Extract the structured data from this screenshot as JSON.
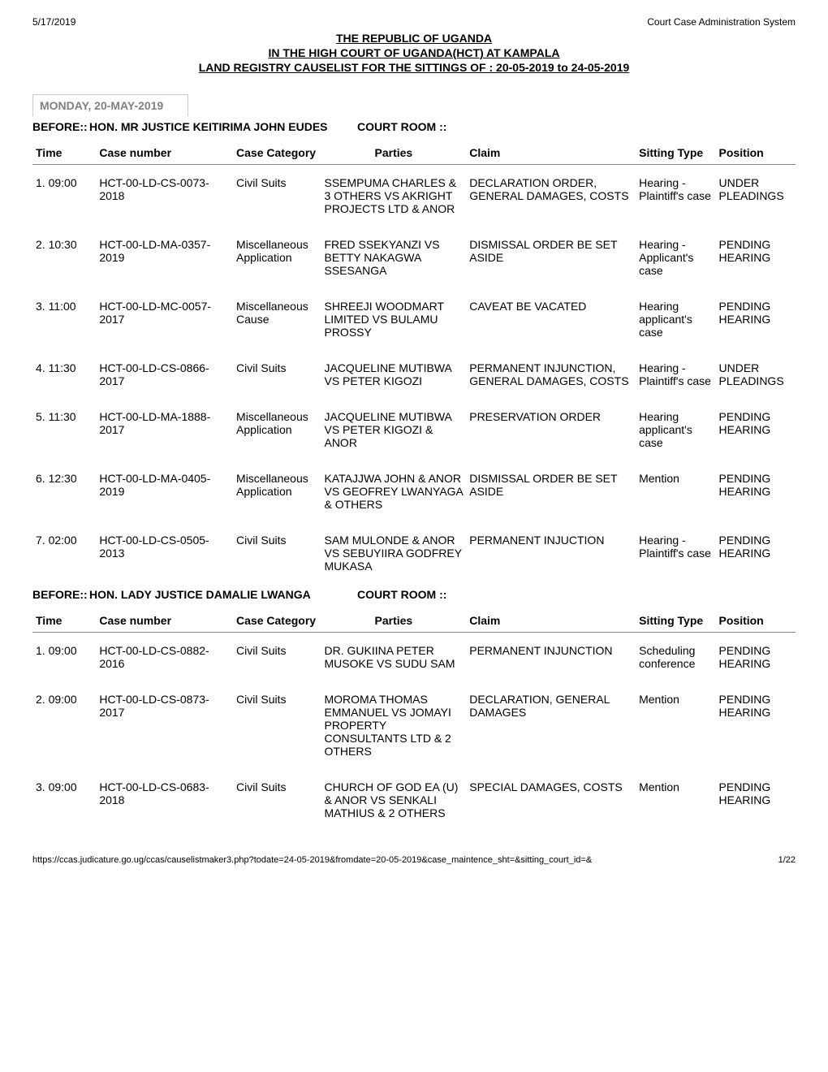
{
  "meta": {
    "date": "5/17/2019",
    "system": "Court Case Administration System",
    "url": "https://ccas.judicature.go.ug/ccas/causelistmaker3.php?todate=24-05-2019&fromdate=20-05-2019&case_maintence_sht=&sitting_court_id=&",
    "page": "1/22"
  },
  "title": {
    "line1": "THE REPUBLIC OF UGANDA",
    "line2": "IN THE HIGH COURT OF UGANDA(HCT) AT KAMPALA",
    "line3": "LAND REGISTRY CAUSELIST FOR THE SITTINGS OF : 20-05-2019 to 24-05-2019"
  },
  "date_header": "MONDAY, 20-MAY-2019",
  "labels": {
    "before": "BEFORE::",
    "courtroom": "COURT ROOM ::",
    "time": "Time",
    "case_number": "Case number",
    "case_category": "Case Category",
    "parties": "Parties",
    "claim": "Claim",
    "sitting_type": "Sitting Type",
    "position": "Position"
  },
  "sessions": [
    {
      "judge": "HON. MR JUSTICE KEITIRIMA JOHN EUDES",
      "rows": [
        {
          "idx": "1.",
          "time": "09:00",
          "case": "HCT-00-LD-CS-0073-2018",
          "category": "Civil Suits",
          "parties": "SSEMPUMA CHARLES & 3 OTHERS VS AKRIGHT PROJECTS LTD & ANOR",
          "claim": "DECLARATION ORDER, GENERAL DAMAGES, COSTS",
          "sitting": "Hearing - Plaintiff's case",
          "position": "UNDER PLEADINGS"
        },
        {
          "idx": "2.",
          "time": "10:30",
          "case": "HCT-00-LD-MA-0357-2019",
          "category": "Miscellaneous Application",
          "parties": "FRED SSEKYANZI VS BETTY NAKAGWA SSESANGA",
          "claim": "DISMISSAL ORDER BE SET ASIDE",
          "sitting": "Hearing - Applicant's case",
          "position": "PENDING HEARING"
        },
        {
          "idx": "3.",
          "time": "11:00",
          "case": "HCT-00-LD-MC-0057-2017",
          "category": "Miscellaneous Cause",
          "parties": "SHREEJI WOODMART LIMITED VS BULAMU PROSSY",
          "claim": "CAVEAT BE VACATED",
          "sitting": "Hearing applicant's case",
          "position": "PENDING HEARING"
        },
        {
          "idx": "4.",
          "time": "11:30",
          "case": "HCT-00-LD-CS-0866-2017",
          "category": "Civil Suits",
          "parties": "JACQUELINE MUTIBWA VS PETER KIGOZI",
          "claim": "PERMANENT INJUNCTION, GENERAL DAMAGES, COSTS",
          "sitting": "Hearing - Plaintiff's case",
          "position": "UNDER PLEADINGS"
        },
        {
          "idx": "5.",
          "time": "11:30",
          "case": "HCT-00-LD-MA-1888-2017",
          "category": "Miscellaneous Application",
          "parties": "JACQUELINE MUTIBWA VS PETER KIGOZI & ANOR",
          "claim": "PRESERVATION ORDER",
          "sitting": "Hearing applicant's case",
          "position": "PENDING HEARING"
        },
        {
          "idx": "6.",
          "time": "12:30",
          "case": "HCT-00-LD-MA-0405-2019",
          "category": "Miscellaneous Application",
          "parties": "KATAJJWA JOHN & ANOR VS GEOFREY LWANYAGA & OTHERS",
          "claim": "DISMISSAL ORDER BE SET ASIDE",
          "sitting": "Mention",
          "position": "PENDING HEARING"
        },
        {
          "idx": "7.",
          "time": "02:00",
          "case": "HCT-00-LD-CS-0505-2013",
          "category": "Civil Suits",
          "parties": "SAM MULONDE & ANOR VS SEBUYIIRA GODFREY MUKASA",
          "claim": "PERMANENT INJUCTION",
          "sitting": "Hearing - Plaintiff's case",
          "position": "PENDING HEARING"
        }
      ]
    },
    {
      "judge": "HON. LADY JUSTICE DAMALIE LWANGA",
      "rows": [
        {
          "idx": "1.",
          "time": "09:00",
          "case": "HCT-00-LD-CS-0882-2016",
          "category": "Civil Suits",
          "parties": "DR. GUKIINA PETER MUSOKE VS SUDU SAM",
          "claim": "PERMANENT INJUNCTION",
          "sitting": "Scheduling conference",
          "position": "PENDING HEARING"
        },
        {
          "idx": "2.",
          "time": "09:00",
          "case": "HCT-00-LD-CS-0873-2017",
          "category": "Civil Suits",
          "parties": "MOROMA THOMAS EMMANUEL VS JOMAYI PROPERTY CONSULTANTS LTD & 2 OTHERS",
          "claim": "DECLARATION, GENERAL DAMAGES",
          "sitting": "Mention",
          "position": "PENDING HEARING"
        },
        {
          "idx": "3.",
          "time": "09:00",
          "case": "HCT-00-LD-CS-0683-2018",
          "category": "Civil Suits",
          "parties": "CHURCH OF GOD EA (U) & ANOR VS SENKALI MATHIUS & 2 OTHERS",
          "claim": "SPECIAL DAMAGES, COSTS",
          "sitting": "Mention",
          "position": "PENDING HEARING"
        }
      ]
    }
  ]
}
